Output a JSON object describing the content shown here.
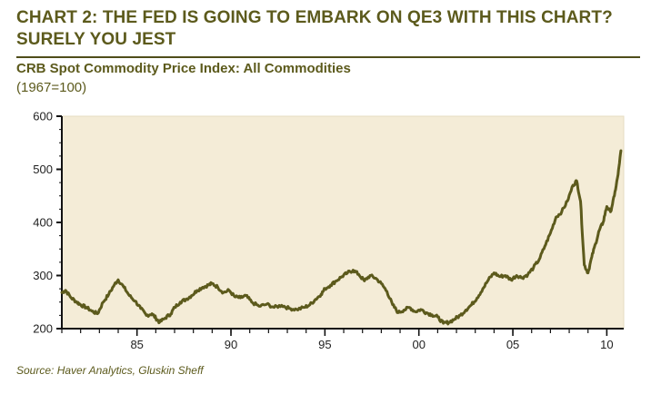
{
  "header": {
    "title_line1": "CHART 2: THE FED IS GOING TO EMBARK ON QE3 WITH THIS CHART?",
    "title_line2": "SURELY YOU JEST"
  },
  "chart_data": {
    "type": "line",
    "title": "CRB Spot Commodity Price Index: All Commodities",
    "subtitle": "(1967=100)",
    "xlabel": "",
    "ylabel": "",
    "xlim": [
      1981,
      2010.9
    ],
    "ylim": [
      200,
      600
    ],
    "y_ticks": [
      200,
      300,
      400,
      500,
      600
    ],
    "y_tick_labels": [
      "200",
      "300",
      "400",
      "500",
      "600"
    ],
    "x_ticks": [
      1985,
      1990,
      1995,
      2000,
      2005,
      2010
    ],
    "x_tick_labels": [
      "85",
      "90",
      "95",
      "00",
      "05",
      "10"
    ],
    "grid": false,
    "background": "#f4ecd7",
    "line_color": "#5c5a1c",
    "series": [
      {
        "name": "CRB Spot Commodity Price Index",
        "x": [
          1981.0,
          1981.2,
          1981.5,
          1981.8,
          1982.0,
          1982.3,
          1982.6,
          1982.9,
          1983.2,
          1983.5,
          1983.8,
          1984.0,
          1984.3,
          1984.6,
          1984.9,
          1985.2,
          1985.5,
          1985.8,
          1986.0,
          1986.2,
          1986.5,
          1986.8,
          1987.0,
          1987.3,
          1987.6,
          1987.9,
          1988.2,
          1988.5,
          1988.8,
          1989.0,
          1989.3,
          1989.6,
          1989.9,
          1990.2,
          1990.5,
          1990.8,
          1991.1,
          1991.5,
          1991.9,
          1992.3,
          1992.7,
          1993.1,
          1993.5,
          1993.9,
          1994.2,
          1994.5,
          1994.8,
          1995.0,
          1995.3,
          1995.6,
          1995.9,
          1996.2,
          1996.5,
          1996.8,
          1997.1,
          1997.4,
          1997.7,
          1998.0,
          1998.3,
          1998.6,
          1998.9,
          1999.2,
          1999.5,
          1999.8,
          2000.1,
          2000.4,
          2000.7,
          2001.0,
          2001.3,
          2001.6,
          2001.9,
          2002.2,
          2002.5,
          2002.8,
          2003.1,
          2003.4,
          2003.7,
          2004.0,
          2004.3,
          2004.6,
          2004.9,
          2005.2,
          2005.5,
          2005.8,
          2006.1,
          2006.4,
          2006.7,
          2007.0,
          2007.3,
          2007.6,
          2007.9,
          2008.2,
          2008.4,
          2008.6,
          2008.8,
          2009.0,
          2009.2,
          2009.4,
          2009.6,
          2009.8,
          2010.0,
          2010.2,
          2010.4,
          2010.6,
          2010.75
        ],
        "values": [
          268,
          272,
          258,
          250,
          245,
          240,
          233,
          228,
          250,
          265,
          283,
          292,
          278,
          262,
          252,
          238,
          225,
          228,
          220,
          212,
          220,
          228,
          240,
          250,
          255,
          262,
          272,
          278,
          282,
          285,
          278,
          268,
          272,
          260,
          258,
          262,
          250,
          242,
          246,
          240,
          244,
          238,
          236,
          240,
          245,
          255,
          265,
          275,
          282,
          290,
          298,
          305,
          310,
          302,
          290,
          300,
          295,
          285,
          270,
          245,
          230,
          235,
          240,
          232,
          236,
          230,
          226,
          222,
          210,
          212,
          218,
          225,
          235,
          245,
          258,
          275,
          292,
          305,
          298,
          300,
          292,
          300,
          296,
          302,
          315,
          330,
          355,
          380,
          410,
          420,
          440,
          470,
          478,
          440,
          320,
          305,
          335,
          360,
          385,
          400,
          430,
          420,
          450,
          490,
          535
        ]
      }
    ]
  },
  "footer": {
    "source": "Source: Haver Analytics, Gluskin Sheff"
  }
}
